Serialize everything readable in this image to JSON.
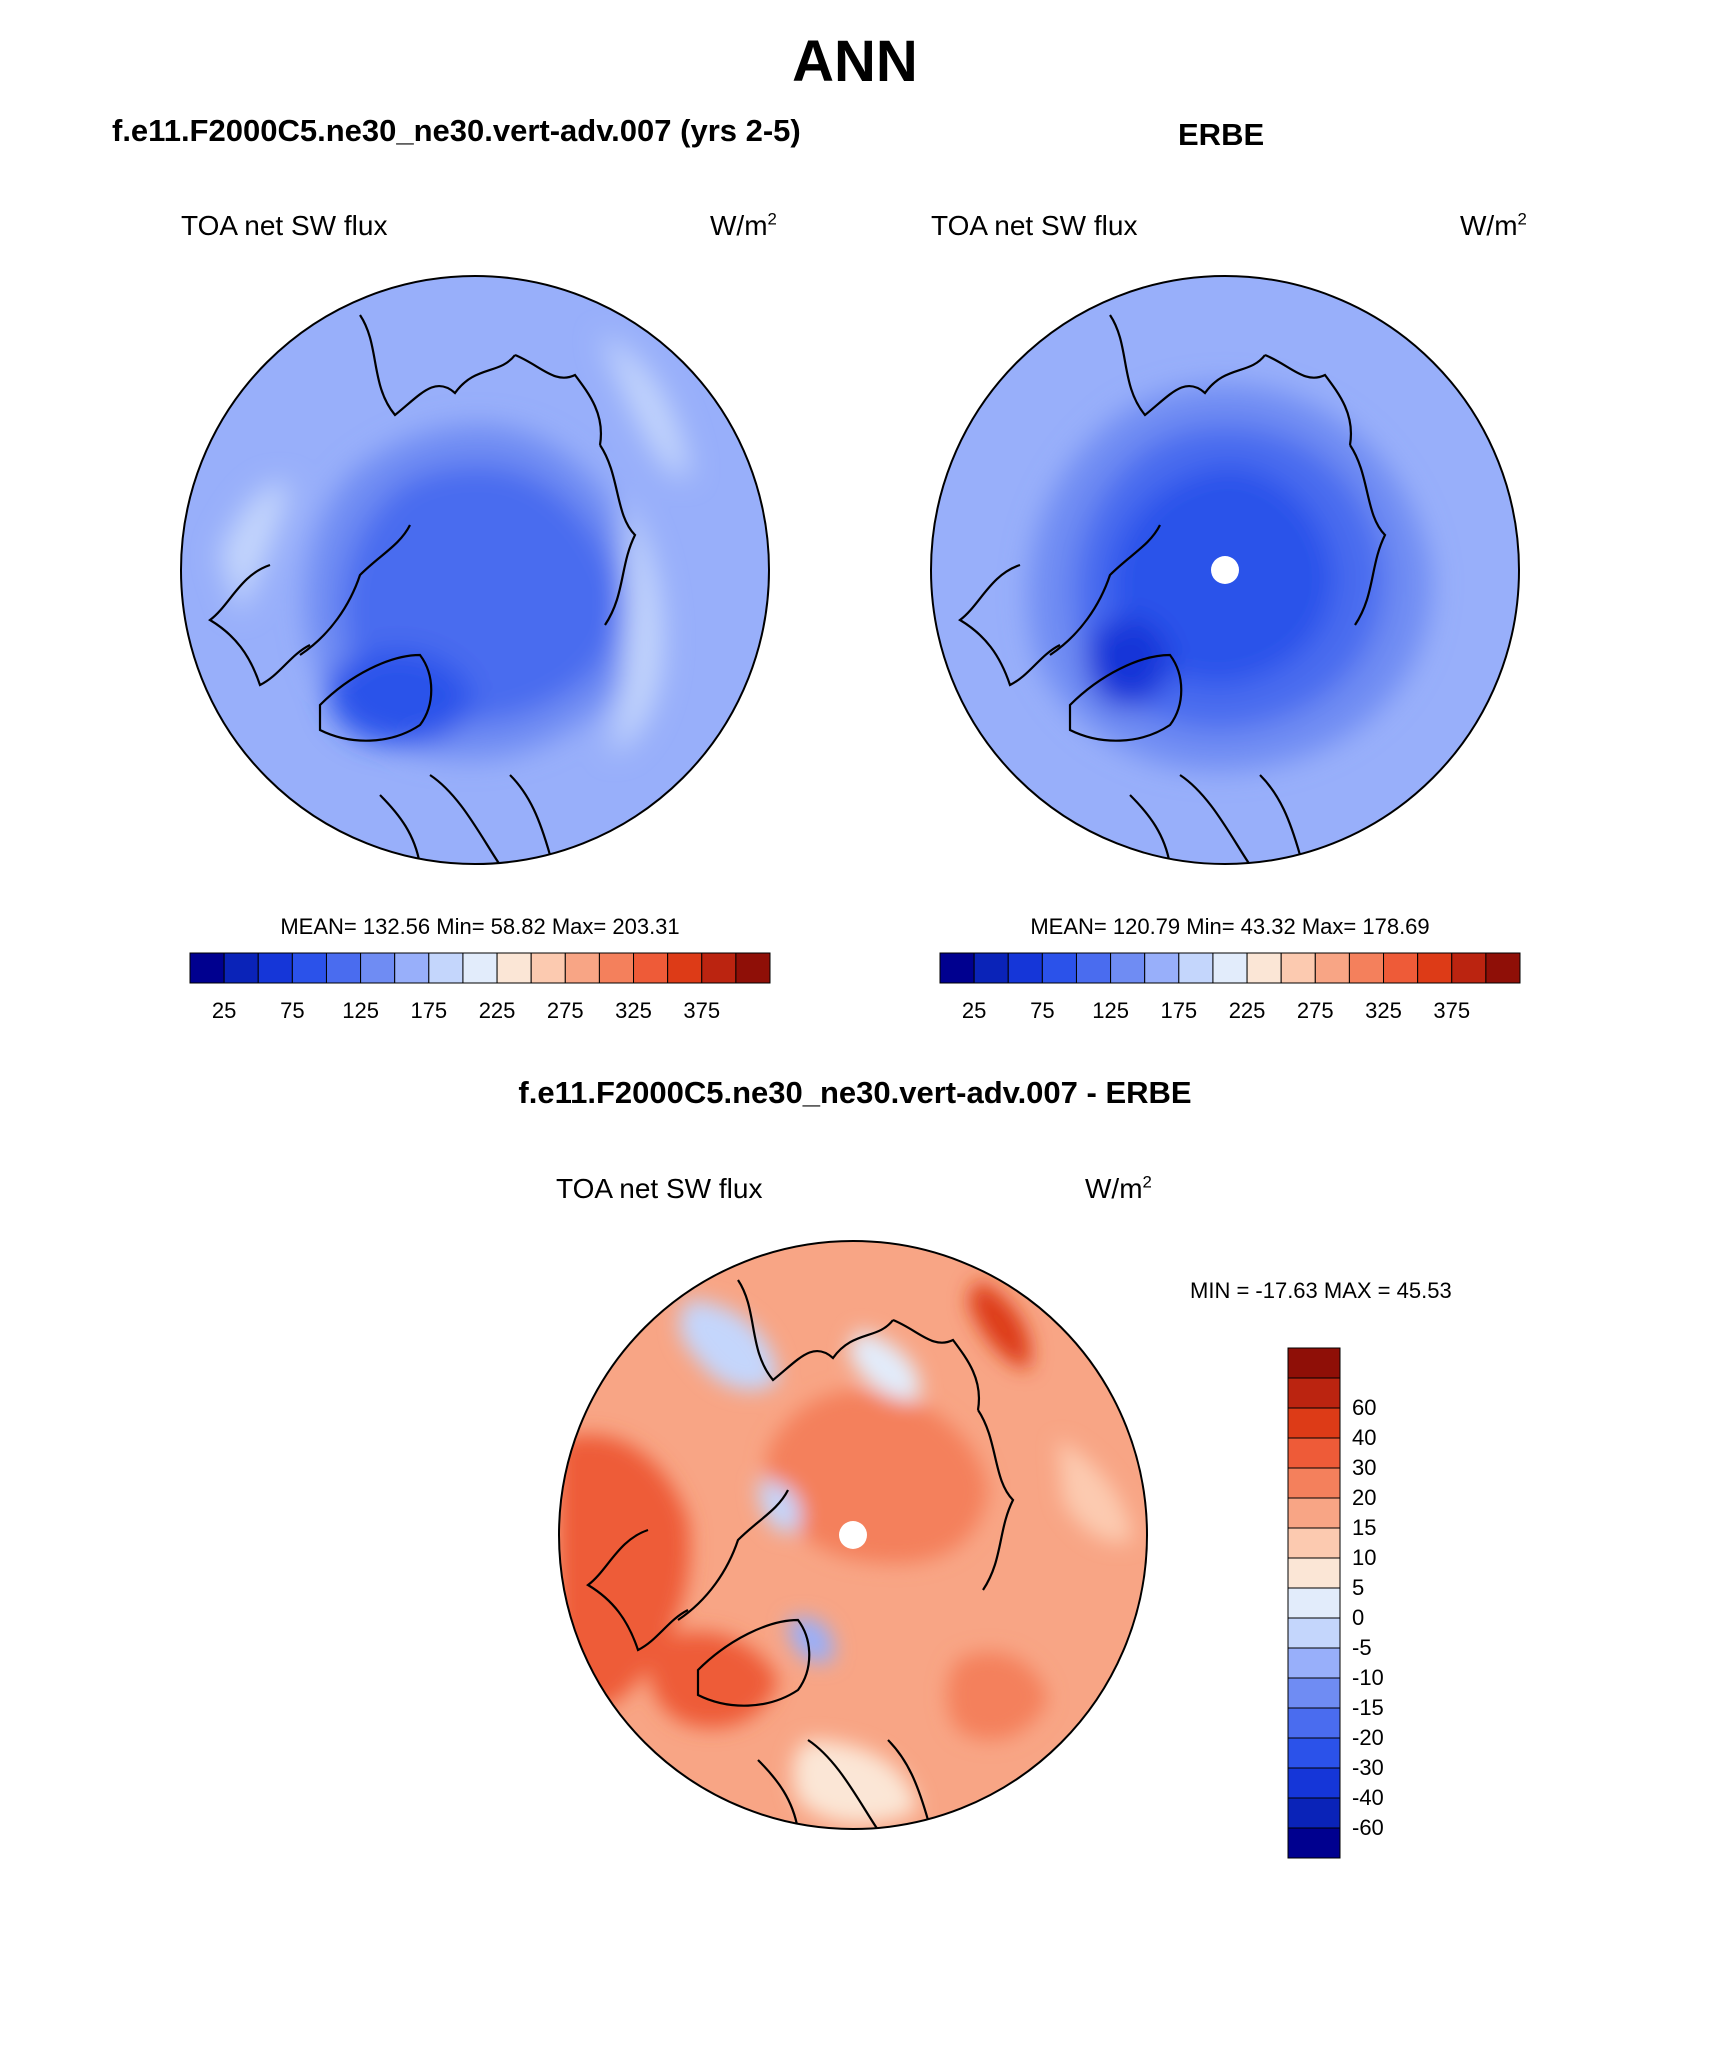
{
  "page_title": "ANN",
  "panels": {
    "model": {
      "header": "f.e11.F2000C5.ne30_ne30.vert-adv.007 (yrs 2-5)",
      "variable": "TOA net SW flux",
      "units_base": "W/m",
      "units_exp": "2",
      "stats": "MEAN= 132.56  Min=  58.82  Max= 203.31"
    },
    "obs": {
      "header": "ERBE",
      "variable": "TOA net SW flux",
      "units_base": "W/m",
      "units_exp": "2",
      "stats": "MEAN= 120.79  Min=  43.32  Max= 178.69"
    },
    "diff": {
      "header": "f.e11.F2000C5.ne30_ne30.vert-adv.007 - ERBE",
      "variable": "TOA net SW flux",
      "units_base": "W/m",
      "units_exp": "2",
      "stats": "MIN = -17.63 MAX =  45.53"
    }
  },
  "colorbars": {
    "abs_colors": [
      "#00008f",
      "#0a23b8",
      "#1536d8",
      "#2b52ea",
      "#4a6cef",
      "#6f8cf3",
      "#98affa",
      "#c4d6fc",
      "#e2ecfb",
      "#fbe6d6",
      "#fccab0",
      "#f8a585",
      "#f4805c",
      "#ee5b38",
      "#dd3b17",
      "#bb2410",
      "#8f0f07"
    ],
    "abs_ticks": [
      "25",
      "75",
      "125",
      "175",
      "225",
      "275",
      "325",
      "375"
    ],
    "diff_colors": [
      "#00008f",
      "#0a23b8",
      "#1536d8",
      "#2b52ea",
      "#4a6cef",
      "#6f8cf3",
      "#98affa",
      "#c4d6fc",
      "#e2ecfb",
      "#fbe6d6",
      "#fccab0",
      "#f8a585",
      "#f4805c",
      "#ee5b38",
      "#dd3b17",
      "#bb2410",
      "#8f0f07"
    ],
    "diff_ticks": [
      "-60",
      "-40",
      "-30",
      "-20",
      "-15",
      "-10",
      "-5",
      "0",
      "5",
      "10",
      "15",
      "20",
      "30",
      "40",
      "60"
    ]
  },
  "colors": {
    "outline": "#000000",
    "background": "#ffffff"
  }
}
